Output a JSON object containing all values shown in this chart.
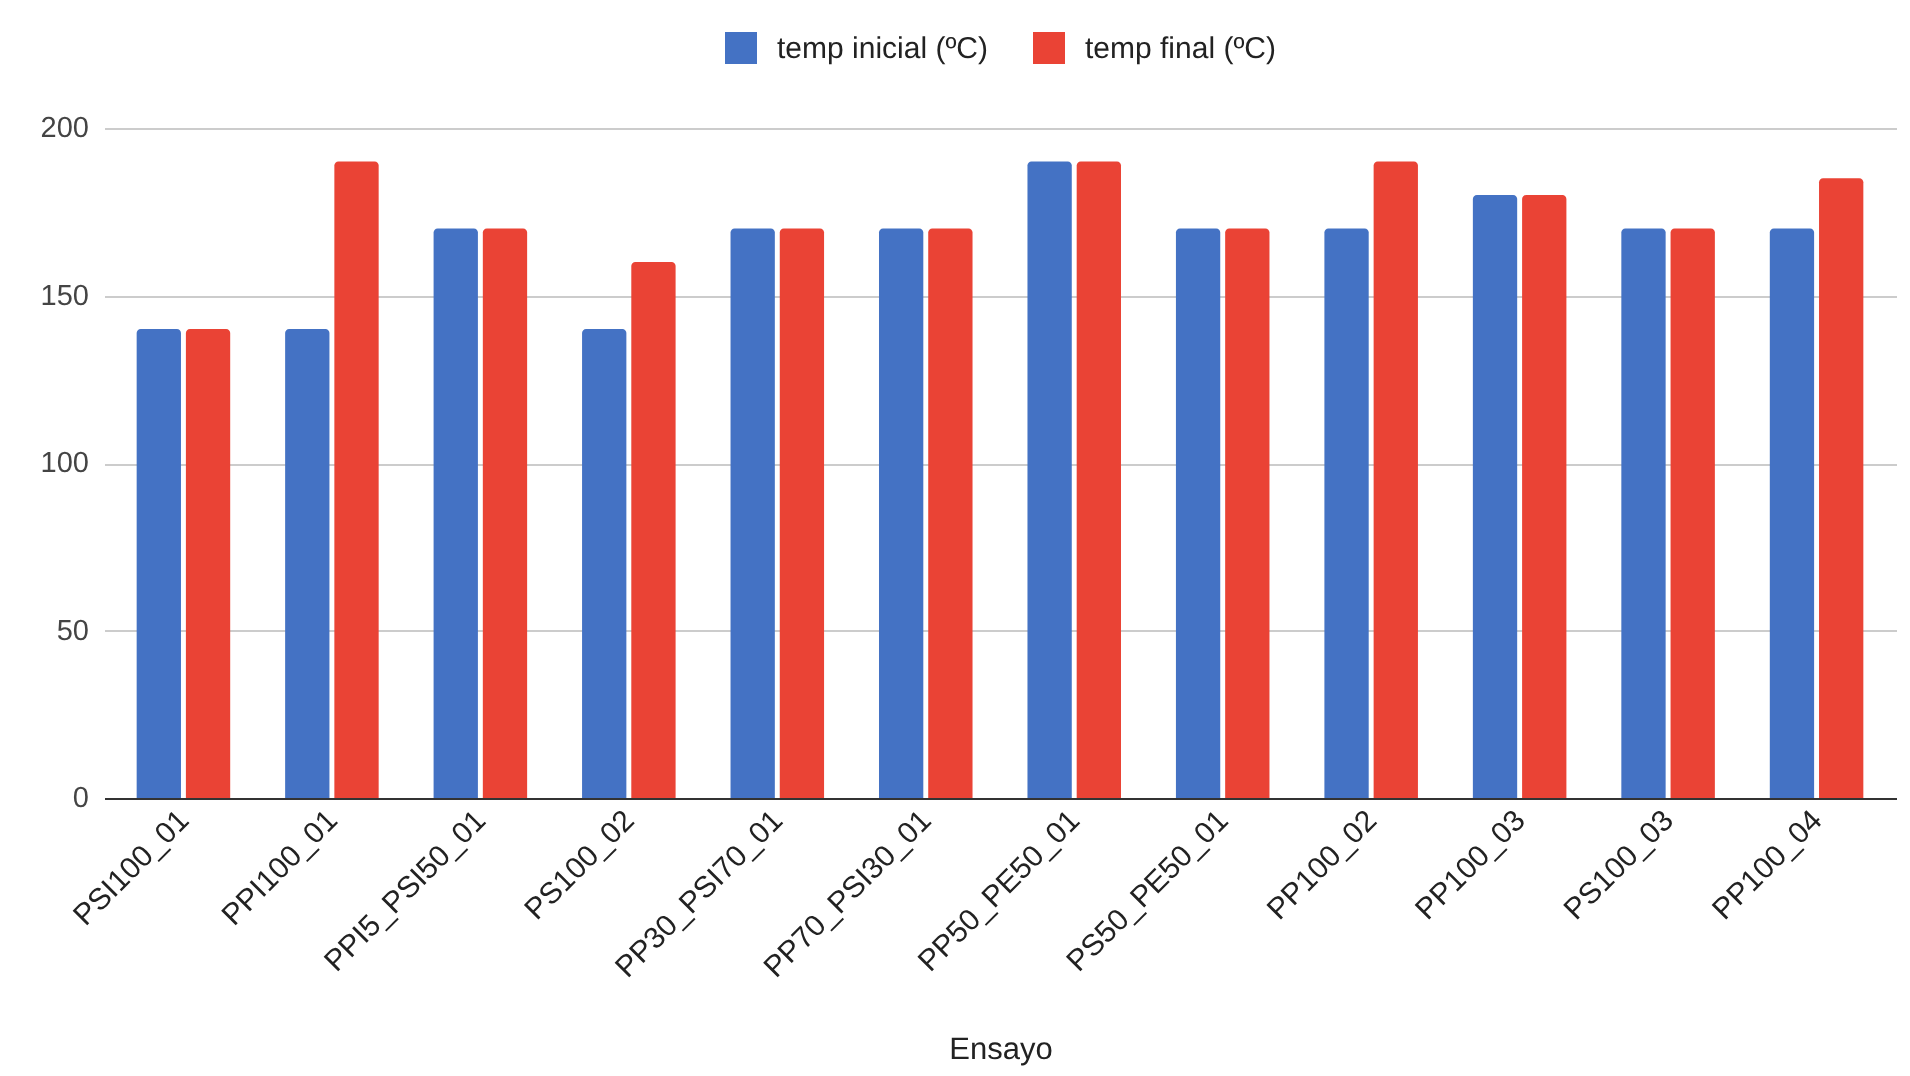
{
  "chart_data": {
    "type": "bar",
    "xlabel": "Ensayo",
    "categories": [
      "PSI100_01",
      "PPI100_01",
      "PPI5_PSI50_01",
      "PS100_02",
      "PP30_PSI70_01",
      "PP70_PSI30_01",
      "PP50_PE50_01",
      "PS50_PE50_01",
      "PP100_02",
      "PP100_03",
      "PS100_03",
      "PP100_04"
    ],
    "series": [
      {
        "name": "temp inicial (ºC)",
        "color": "#4472c4",
        "values": [
          140,
          140,
          170,
          140,
          170,
          170,
          190,
          170,
          170,
          180,
          170,
          170
        ]
      },
      {
        "name": "temp final (ºC)",
        "color": "#ea4335",
        "values": [
          140,
          190,
          170,
          160,
          170,
          170,
          190,
          170,
          190,
          180,
          170,
          185
        ]
      }
    ],
    "ylim": [
      0,
      200
    ],
    "yticks": [
      0,
      50,
      100,
      150,
      200
    ],
    "grid": "y",
    "legend": "top"
  }
}
